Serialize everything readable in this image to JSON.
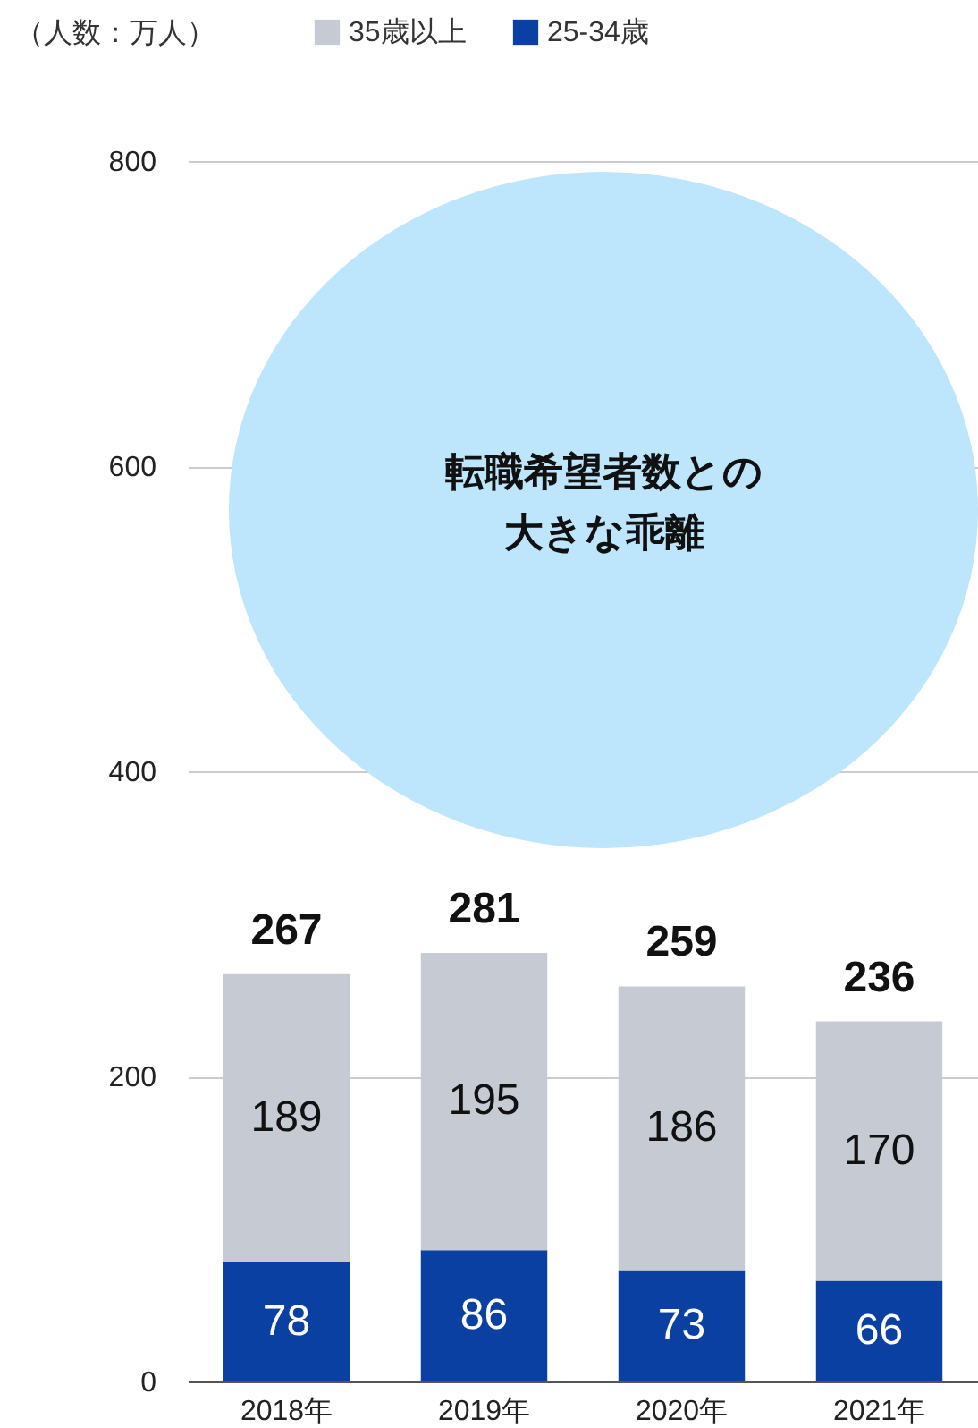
{
  "chart_data": {
    "type": "bar",
    "stacked": true,
    "ylabel": "（人数：万人）",
    "categories": [
      "2018年",
      "2019年",
      "2020年",
      "2021年"
    ],
    "series": [
      {
        "name": "25-34歳",
        "color": "#0b40a3",
        "values": [
          78,
          86,
          73,
          66
        ]
      },
      {
        "name": "35歳以上",
        "color": "#c6cbd3",
        "values": [
          189,
          195,
          186,
          170
        ]
      }
    ],
    "totals": [
      "267",
      "281",
      "259",
      "236"
    ],
    "data_labels": true,
    "ylim": [
      0,
      800
    ],
    "yticks": [
      0,
      200,
      400,
      600,
      800
    ],
    "grid": "y",
    "legend": "top left",
    "annotations": [
      "転職希望者数との大きな乖離"
    ]
  }
}
